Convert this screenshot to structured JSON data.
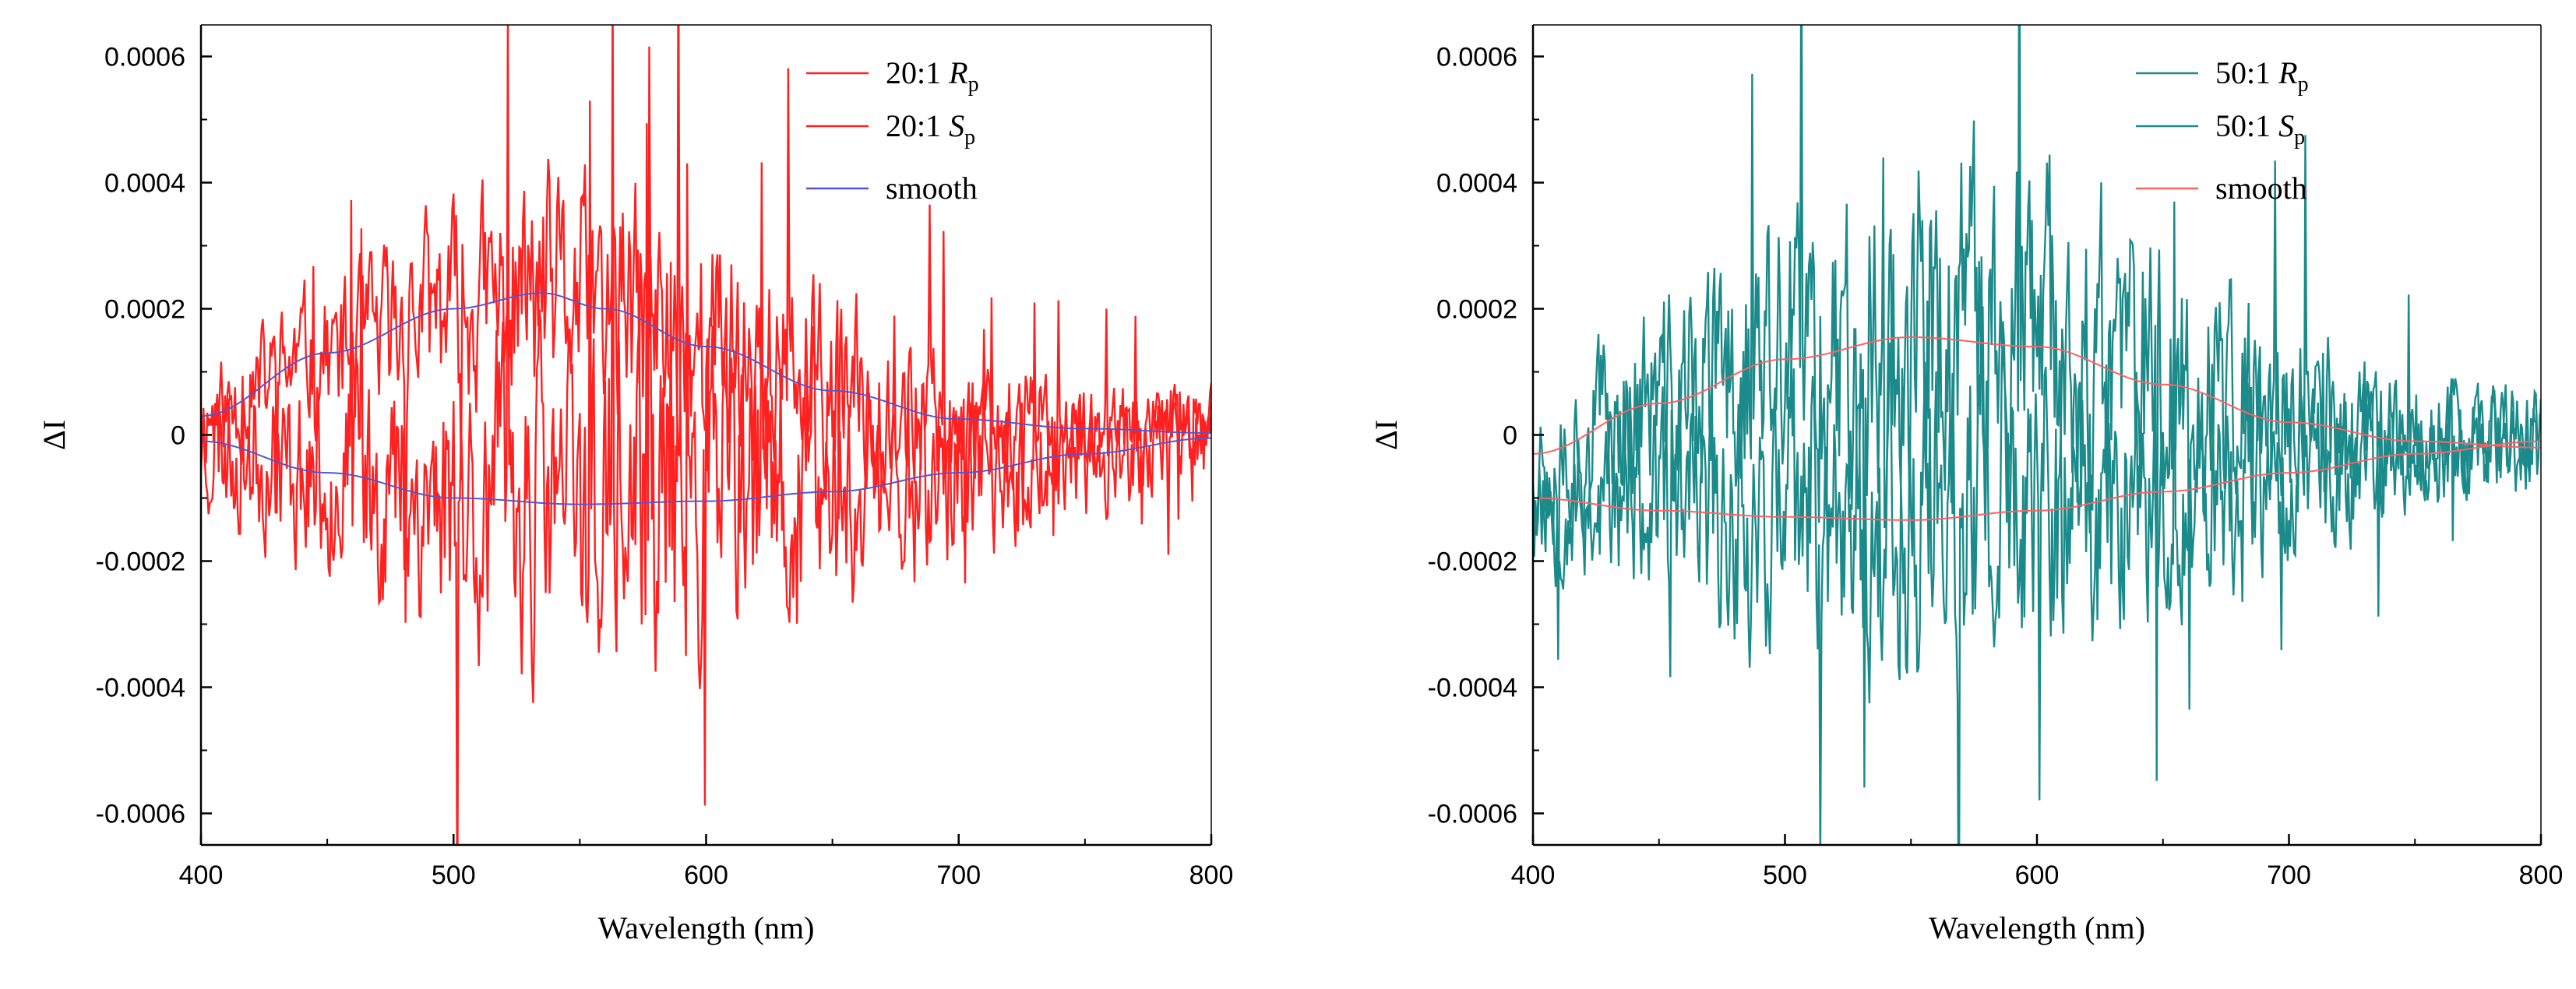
{
  "chart_data": [
    {
      "type": "line",
      "title": "",
      "xlabel": "Wavelength (nm)",
      "ylabel": "ΔI",
      "xlim": [
        400,
        800
      ],
      "ylim": [
        -0.00065,
        0.00065
      ],
      "xticks": [
        400,
        500,
        600,
        700,
        800
      ],
      "xtick_labels": [
        "400",
        "500",
        "600",
        "700",
        "800"
      ],
      "yticks": [
        -0.0006,
        -0.0004,
        -0.0002,
        0,
        0.0002,
        0.0004,
        0.0006
      ],
      "ytick_labels": [
        "-0.0006",
        "-0.0004",
        "-0.0002",
        "0",
        "0.0002",
        "0.0004",
        "0.0006"
      ],
      "grid": false,
      "legend_position": "top-right",
      "series": [
        {
          "name": "Rp",
          "legend_main": "20:1 ",
          "legend_italic": "R",
          "legend_sub": "p",
          "color": "#ff2020",
          "noise_amp": 0.00017,
          "seed": 11,
          "baseline": {
            "x": [
              400,
              450,
              500,
              535,
              560,
              600,
              650,
              700,
              750,
              800
            ],
            "y": [
              3e-05,
              0.00013,
              0.0002,
              0.000225,
              0.0002,
              0.00014,
              7e-05,
              2.5e-05,
              1e-05,
              3e-06
            ]
          }
        },
        {
          "name": "Sp",
          "legend_main": "20:1 ",
          "legend_italic": "S",
          "legend_sub": "p",
          "color": "#ff2020",
          "noise_amp": 0.00024,
          "seed": 23,
          "baseline": {
            "x": [
              400,
              450,
              500,
              550,
              600,
              650,
              700,
              750,
              800
            ],
            "y": [
              -1e-05,
              -6e-05,
              -0.0001,
              -0.00011,
              -0.000105,
              -9e-05,
              -6e-05,
              -3e-05,
              -5e-06
            ]
          }
        },
        {
          "name": "smooth",
          "legend_main": "smooth",
          "legend_italic": "",
          "legend_sub": "",
          "color": "#5555cc",
          "smooth_of": [
            0,
            1
          ]
        }
      ]
    },
    {
      "type": "line",
      "title": "",
      "xlabel": "Wavelength (nm)",
      "ylabel": "ΔI",
      "xlim": [
        400,
        800
      ],
      "ylim": [
        -0.00065,
        0.00065
      ],
      "xticks": [
        400,
        500,
        600,
        700,
        800
      ],
      "xtick_labels": [
        "400",
        "500",
        "600",
        "700",
        "800"
      ],
      "yticks": [
        -0.0006,
        -0.0004,
        -0.0002,
        0,
        0.0002,
        0.0004,
        0.0006
      ],
      "ytick_labels": [
        "-0.0006",
        "-0.0004",
        "-0.0002",
        "0",
        "0.0002",
        "0.0004",
        "0.0006"
      ],
      "grid": false,
      "legend_position": "top-right",
      "series": [
        {
          "name": "Rp",
          "legend_main": "50:1 ",
          "legend_italic": "R",
          "legend_sub": "p",
          "color": "#1a8a8a",
          "noise_amp": 0.00025,
          "seed": 37,
          "baseline": {
            "x": [
              400,
              450,
              500,
              550,
              600,
              650,
              700,
              750,
              800
            ],
            "y": [
              -3e-05,
              5e-05,
              0.00012,
              0.000155,
              0.00014,
              8e-05,
              2e-05,
              -1e-05,
              -2e-05
            ]
          }
        },
        {
          "name": "Sp",
          "legend_main": "50:1 ",
          "legend_italic": "S",
          "legend_sub": "p",
          "color": "#1a8a8a",
          "noise_amp": 0.00024,
          "seed": 53,
          "baseline": {
            "x": [
              400,
              450,
              500,
              550,
              600,
              650,
              700,
              750,
              800
            ],
            "y": [
              -0.0001,
              -0.00012,
              -0.00013,
              -0.000135,
              -0.00012,
              -9e-05,
              -6e-05,
              -3e-05,
              -1e-05
            ]
          }
        },
        {
          "name": "smooth",
          "legend_main": "smooth",
          "legend_italic": "",
          "legend_sub": "",
          "color": "#ff6060",
          "smooth_of": [
            0,
            1
          ]
        }
      ]
    }
  ]
}
